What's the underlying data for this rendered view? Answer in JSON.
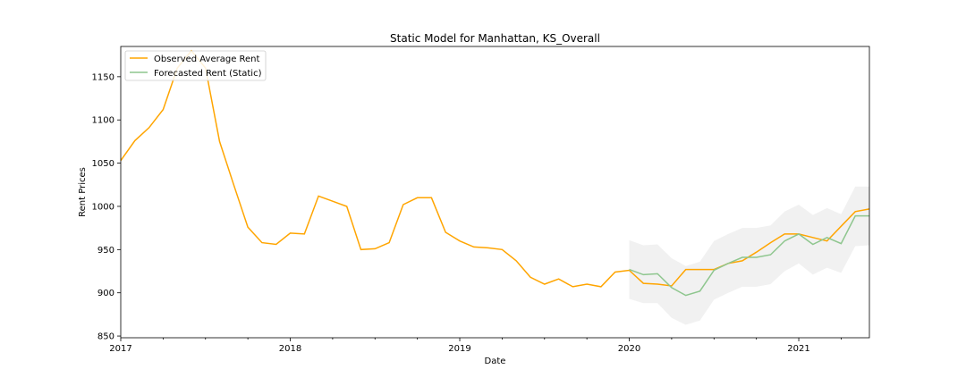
{
  "chart_data": {
    "type": "line",
    "title": "Static Model for Manhattan, KS_Overall",
    "xlabel": "Date",
    "ylabel": "Rent Prices",
    "xlim": [
      "2017-01",
      "2021-06"
    ],
    "ylim": [
      848,
      1185
    ],
    "x_ticks": [
      {
        "label": "2017",
        "date": "2017-01"
      },
      {
        "label": "2018",
        "date": "2018-01"
      },
      {
        "label": "2019",
        "date": "2019-01"
      },
      {
        "label": "2020",
        "date": "2020-01"
      },
      {
        "label": "2021",
        "date": "2021-01"
      }
    ],
    "y_ticks": [
      850,
      900,
      950,
      1000,
      1050,
      1100,
      1150
    ],
    "legend_position": "top-left",
    "grid": false,
    "series": [
      {
        "name": "Observed Average Rent",
        "color": "#ffa500",
        "x": [
          "2017-01",
          "2017-02",
          "2017-03",
          "2017-04",
          "2017-05",
          "2017-06",
          "2017-07",
          "2017-08",
          "2017-09",
          "2017-10",
          "2017-11",
          "2017-12",
          "2018-01",
          "2018-02",
          "2018-03",
          "2018-04",
          "2018-05",
          "2018-06",
          "2018-07",
          "2018-08",
          "2018-09",
          "2018-10",
          "2018-11",
          "2018-12",
          "2019-01",
          "2019-02",
          "2019-03",
          "2019-04",
          "2019-05",
          "2019-06",
          "2019-07",
          "2019-08",
          "2019-09",
          "2019-10",
          "2019-11",
          "2019-12",
          "2020-01",
          "2020-02",
          "2020-03",
          "2020-04",
          "2020-05",
          "2020-06",
          "2020-07",
          "2020-08",
          "2020-09",
          "2020-10",
          "2020-11",
          "2020-12",
          "2021-01",
          "2021-02",
          "2021-03",
          "2021-04",
          "2021-05",
          "2021-06"
        ],
        "values": [
          1053,
          1076,
          1091,
          1112,
          1160,
          1180,
          1160,
          1075,
          1025,
          976,
          958,
          956,
          969,
          968,
          1012,
          1006,
          1000,
          950,
          951,
          958,
          1002,
          1010,
          1010,
          970,
          960,
          953,
          952,
          950,
          937,
          918,
          910,
          916,
          907,
          910,
          907,
          924,
          926,
          911,
          910,
          908,
          927,
          927,
          927,
          934,
          937,
          947,
          958,
          968,
          968,
          964,
          960,
          977,
          994,
          997
        ]
      },
      {
        "name": "Forecasted Rent (Static)",
        "color": "#8ec68e",
        "x": [
          "2020-01",
          "2020-02",
          "2020-03",
          "2020-04",
          "2020-05",
          "2020-06",
          "2020-07",
          "2020-08",
          "2020-09",
          "2020-10",
          "2020-11",
          "2020-12",
          "2021-01",
          "2021-02",
          "2021-03",
          "2021-04",
          "2021-05",
          "2021-06"
        ],
        "values": [
          927,
          921,
          922,
          906,
          897,
          902,
          926,
          934,
          941,
          941,
          944,
          960,
          968,
          956,
          964,
          957,
          989,
          989
        ],
        "lower": [
          893,
          888,
          888,
          871,
          863,
          868,
          892,
          900,
          907,
          907,
          910,
          925,
          934,
          921,
          929,
          923,
          954,
          955
        ],
        "upper": [
          961,
          955,
          956,
          940,
          931,
          936,
          960,
          968,
          975,
          975,
          978,
          994,
          1002,
          990,
          998,
          991,
          1023,
          1023
        ]
      }
    ]
  }
}
